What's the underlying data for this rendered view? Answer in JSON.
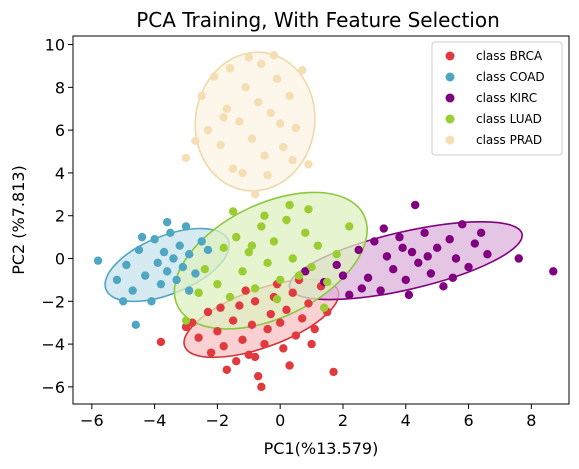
{
  "chart_data": {
    "type": "scatter",
    "title": "PCA Training, With Feature Selection",
    "xlabel": "PC1(%13.579)",
    "ylabel": "PC2 (%7.813)",
    "xlim": [
      -6.6,
      9.2
    ],
    "ylim": [
      -6.8,
      10.4
    ],
    "xticks": [
      -6,
      -4,
      -2,
      0,
      2,
      4,
      6,
      8
    ],
    "yticks": [
      -6,
      -4,
      -2,
      0,
      2,
      4,
      6,
      8,
      10
    ],
    "xtick_labels": [
      "−6",
      "−4",
      "−2",
      "0",
      "2",
      "4",
      "6",
      "8"
    ],
    "ytick_labels": [
      "−6",
      "−4",
      "−2",
      "0",
      "2",
      "4",
      "6",
      "8",
      "10"
    ],
    "grid": false,
    "legend_position": "top-right",
    "series": [
      {
        "name": "class BRCA",
        "color": "#e0393e",
        "ellipse": {
          "cx": -0.6,
          "cy": -2.8,
          "rx": 2.6,
          "ry": 1.35,
          "angle": 20,
          "fill": "#f7c1c3",
          "stroke": "#d63236"
        },
        "points": [
          [
            -3.8,
            -3.9
          ],
          [
            -3.0,
            -3.2
          ],
          [
            -2.8,
            -3.0
          ],
          [
            -2.3,
            -2.5
          ],
          [
            -2.0,
            -3.4
          ],
          [
            -1.8,
            -4.1
          ],
          [
            -1.5,
            -2.9
          ],
          [
            -1.3,
            -2.2
          ],
          [
            -1.2,
            -3.8
          ],
          [
            -1.0,
            -4.5
          ],
          [
            -0.9,
            -3.1
          ],
          [
            -0.8,
            -2.0
          ],
          [
            -0.7,
            -5.5
          ],
          [
            -0.5,
            -4.0
          ],
          [
            -0.4,
            -3.3
          ],
          [
            -0.3,
            -2.6
          ],
          [
            -0.2,
            -1.8
          ],
          [
            0.0,
            -3.0
          ],
          [
            0.1,
            -4.2
          ],
          [
            0.2,
            -2.4
          ],
          [
            0.4,
            -1.6
          ],
          [
            0.5,
            -3.6
          ],
          [
            0.7,
            -2.8
          ],
          [
            0.9,
            -2.1
          ],
          [
            1.1,
            -3.3
          ],
          [
            1.3,
            -1.3
          ],
          [
            1.5,
            -2.5
          ],
          [
            1.7,
            -5.3
          ],
          [
            -1.7,
            -5.2
          ],
          [
            -1.4,
            -4.8
          ],
          [
            -0.6,
            -6.0
          ],
          [
            -2.6,
            -3.7
          ],
          [
            -2.2,
            -4.4
          ],
          [
            -1.1,
            -1.5
          ],
          [
            -0.1,
            -1.2
          ],
          [
            0.6,
            -1.0
          ],
          [
            -1.9,
            -2.3
          ],
          [
            0.3,
            -5.0
          ],
          [
            -0.8,
            -4.6
          ],
          [
            1.0,
            -4.0
          ]
        ]
      },
      {
        "name": "class COAD",
        "color": "#4ea6c2",
        "ellipse": {
          "cx": -3.6,
          "cy": -0.3,
          "rx": 2.1,
          "ry": 1.35,
          "angle": 22,
          "fill": "#c8e3ec",
          "stroke": "#4ea6c2"
        },
        "points": [
          [
            -5.8,
            -0.1
          ],
          [
            -5.2,
            -1.0
          ],
          [
            -4.9,
            -0.3
          ],
          [
            -4.7,
            -1.5
          ],
          [
            -4.5,
            0.4
          ],
          [
            -4.3,
            -0.8
          ],
          [
            -4.1,
            -2.0
          ],
          [
            -4.0,
            0.9
          ],
          [
            -3.9,
            -0.2
          ],
          [
            -3.8,
            -1.2
          ],
          [
            -3.7,
            0.3
          ],
          [
            -3.6,
            -0.6
          ],
          [
            -3.5,
            1.2
          ],
          [
            -3.4,
            0.0
          ],
          [
            -3.3,
            -1.0
          ],
          [
            -3.2,
            0.6
          ],
          [
            -3.1,
            -0.4
          ],
          [
            -3.0,
            1.5
          ],
          [
            -2.9,
            0.2
          ],
          [
            -2.7,
            -0.7
          ],
          [
            -2.5,
            0.8
          ],
          [
            -2.3,
            0.4
          ],
          [
            -4.6,
            -3.1
          ],
          [
            -5.0,
            -2.0
          ],
          [
            -4.4,
            1.0
          ],
          [
            -3.6,
            1.7
          ],
          [
            -2.9,
            -1.5
          ]
        ]
      },
      {
        "name": "class KIRC",
        "color": "#800080",
        "ellipse": {
          "cx": 4.0,
          "cy": -0.1,
          "rx": 3.8,
          "ry": 1.35,
          "angle": 13,
          "fill": "#dbb2db",
          "stroke": "#800080"
        },
        "points": [
          [
            0.8,
            -0.6
          ],
          [
            1.4,
            -1.1
          ],
          [
            1.8,
            -0.3
          ],
          [
            2.2,
            -1.7
          ],
          [
            2.5,
            0.4
          ],
          [
            2.8,
            -0.9
          ],
          [
            3.0,
            0.8
          ],
          [
            3.2,
            -1.5
          ],
          [
            3.4,
            0.1
          ],
          [
            3.6,
            -0.5
          ],
          [
            3.8,
            1.0
          ],
          [
            4.0,
            -1.0
          ],
          [
            4.2,
            0.3
          ],
          [
            4.3,
            2.5
          ],
          [
            4.4,
            -0.2
          ],
          [
            4.6,
            1.2
          ],
          [
            4.8,
            -0.7
          ],
          [
            5.0,
            0.5
          ],
          [
            5.2,
            -1.3
          ],
          [
            5.4,
            0.9
          ],
          [
            5.6,
            0.0
          ],
          [
            5.8,
            1.6
          ],
          [
            6.0,
            -0.4
          ],
          [
            6.2,
            0.7
          ],
          [
            6.4,
            1.2
          ],
          [
            6.6,
            0.2
          ],
          [
            7.6,
            0.0
          ],
          [
            8.7,
            -0.6
          ],
          [
            2.0,
            -0.8
          ],
          [
            2.6,
            -1.4
          ],
          [
            3.9,
            0.5
          ],
          [
            4.7,
            0.1
          ],
          [
            5.5,
            -0.9
          ],
          [
            3.3,
            1.4
          ],
          [
            4.1,
            -1.7
          ]
        ]
      },
      {
        "name": "class LUAD",
        "color": "#9acd32",
        "ellipse": {
          "cx": -0.3,
          "cy": -0.1,
          "rx": 3.3,
          "ry": 2.65,
          "angle": 26,
          "fill": "#dff0c0",
          "stroke": "#8cc83c"
        },
        "points": [
          [
            -3.0,
            -2.9
          ],
          [
            -2.4,
            -0.5
          ],
          [
            -2.0,
            -1.2
          ],
          [
            -1.8,
            0.5
          ],
          [
            -1.6,
            -1.8
          ],
          [
            -1.4,
            1.0
          ],
          [
            -1.2,
            -0.6
          ],
          [
            -1.0,
            0.3
          ],
          [
            -0.8,
            -1.4
          ],
          [
            -0.6,
            1.5
          ],
          [
            -0.4,
            -0.2
          ],
          [
            -0.2,
            0.8
          ],
          [
            0.0,
            -1.0
          ],
          [
            0.2,
            1.8
          ],
          [
            0.4,
            0.0
          ],
          [
            0.6,
            -0.8
          ],
          [
            0.8,
            1.2
          ],
          [
            1.0,
            -0.4
          ],
          [
            1.2,
            0.6
          ],
          [
            1.5,
            -1.1
          ],
          [
            1.8,
            0.2
          ],
          [
            2.2,
            1.5
          ],
          [
            -0.5,
            2.0
          ],
          [
            0.3,
            2.5
          ],
          [
            -1.5,
            2.2
          ],
          [
            -2.6,
            -1.6
          ],
          [
            -0.1,
            -1.9
          ],
          [
            1.4,
            -2.3
          ],
          [
            0.9,
            2.3
          ],
          [
            -0.9,
            0.6
          ]
        ]
      },
      {
        "name": "class PRAD",
        "color": "#f5deb3",
        "ellipse": {
          "cx": -0.8,
          "cy": 6.4,
          "rx": 1.9,
          "ry": 3.25,
          "angle": -8,
          "fill": "#fcf3e3",
          "stroke": "#f0d9a8"
        },
        "points": [
          [
            -3.0,
            4.7
          ],
          [
            -2.5,
            7.6
          ],
          [
            -2.3,
            6.0
          ],
          [
            -2.1,
            8.5
          ],
          [
            -1.9,
            5.3
          ],
          [
            -1.7,
            7.0
          ],
          [
            -1.5,
            4.2
          ],
          [
            -1.3,
            6.4
          ],
          [
            -1.1,
            8.0
          ],
          [
            -0.9,
            5.6
          ],
          [
            -0.7,
            7.3
          ],
          [
            -0.6,
            9.1
          ],
          [
            -0.5,
            4.8
          ],
          [
            -0.3,
            6.8
          ],
          [
            -0.1,
            8.4
          ],
          [
            0.1,
            5.2
          ],
          [
            0.3,
            7.6
          ],
          [
            0.5,
            6.1
          ],
          [
            0.7,
            8.8
          ],
          [
            0.9,
            4.4
          ],
          [
            -1.0,
            9.4
          ],
          [
            -0.4,
            3.9
          ],
          [
            -0.8,
            3.0
          ],
          [
            -1.6,
            8.9
          ],
          [
            -2.7,
            5.5
          ],
          [
            -1.2,
            4.0
          ],
          [
            0.0,
            6.3
          ],
          [
            -0.2,
            9.5
          ],
          [
            0.4,
            4.6
          ],
          [
            -1.8,
            6.6
          ]
        ]
      }
    ]
  }
}
